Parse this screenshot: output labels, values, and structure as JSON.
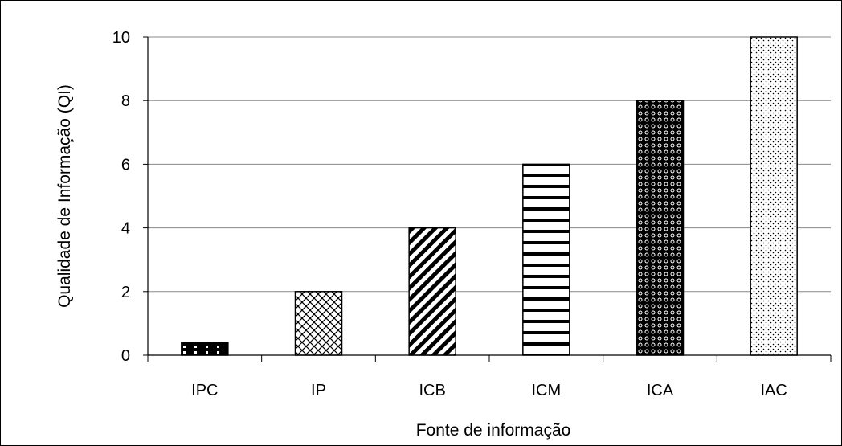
{
  "chart_data": {
    "type": "bar",
    "categories": [
      "IPC",
      "IP",
      "ICB",
      "ICM",
      "ICA",
      "IAC"
    ],
    "values": [
      0.4,
      2,
      4,
      6,
      8,
      10
    ],
    "xlabel": "Fonte de informação",
    "ylabel": "Qualidade de Informação (QI)",
    "ylim": [
      0,
      10
    ],
    "yticks": [
      0,
      2,
      4,
      6,
      8,
      10
    ],
    "grid": true,
    "patterns": [
      "dotted-dark",
      "crosshatch",
      "diagonal",
      "horizontal",
      "dark-circles",
      "light-dots"
    ],
    "colors": {
      "ink": "#000000",
      "grid": "#888888",
      "background": "#ffffff"
    }
  }
}
